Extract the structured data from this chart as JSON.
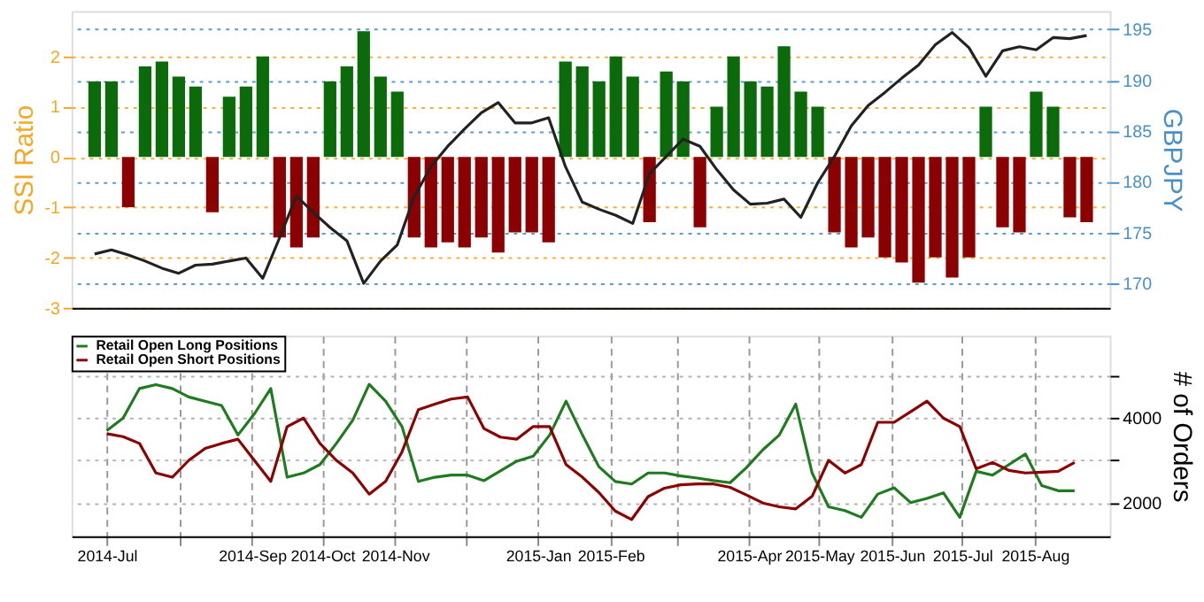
{
  "chart_data": [
    {
      "type": "bar",
      "ylabel": "SSI Ratio",
      "y2label": "GBPJPY",
      "grid": "y",
      "categories": [
        null,
        null,
        null,
        null,
        null,
        null,
        null,
        null,
        null,
        null,
        null,
        null,
        null,
        null,
        null,
        null,
        null,
        null,
        null,
        null,
        null,
        null,
        null,
        null,
        null,
        null,
        null,
        null,
        null,
        null,
        null,
        null,
        null,
        null,
        null,
        null,
        null,
        null,
        null,
        null,
        null,
        null,
        null,
        null,
        null,
        null,
        null,
        null,
        null,
        null,
        null,
        null,
        null,
        null,
        null,
        null,
        null,
        null,
        null,
        null
      ],
      "series": [
        {
          "color": "#0b6b0b",
          "values": [
            1.5,
            1.5,
            null,
            1.8,
            1.9,
            1.6,
            1.4,
            null,
            1.2,
            1.4,
            2.0,
            null,
            null,
            null,
            1.5,
            1.8,
            2.5,
            1.6,
            1.3,
            null,
            null,
            null,
            null,
            null,
            null,
            null,
            null,
            null,
            1.9,
            1.8,
            1.5,
            2.0,
            1.6,
            null,
            1.7,
            1.5,
            null,
            1.0,
            2.0,
            1.5,
            1.4,
            2.2,
            1.3,
            1.0,
            null,
            null,
            null,
            null,
            null,
            null,
            null,
            null,
            null,
            1.0,
            null,
            null,
            1.3,
            1.0,
            null,
            null
          ]
        },
        {
          "color": "#8b0000",
          "values": [
            null,
            null,
            -1.0,
            null,
            null,
            null,
            null,
            -1.1,
            null,
            null,
            null,
            -1.6,
            -1.8,
            -1.6,
            null,
            null,
            null,
            null,
            null,
            -1.6,
            -1.8,
            -1.7,
            -1.8,
            -1.6,
            -1.9,
            -1.5,
            -1.5,
            -1.7,
            null,
            null,
            null,
            null,
            null,
            -1.3,
            null,
            null,
            -1.4,
            null,
            null,
            null,
            null,
            null,
            null,
            null,
            -1.5,
            -1.8,
            -1.6,
            -2.0,
            -2.1,
            -2.5,
            -2.0,
            -2.4,
            -2.0,
            null,
            -1.4,
            -1.5,
            null,
            null,
            -1.2,
            -1.3
          ]
        },
        {
          "type": "line",
          "axis": "y2",
          "color": "#222222",
          "values": [
            172.9,
            173.3,
            172.8,
            172.2,
            171.5,
            171.0,
            171.8,
            171.9,
            172.2,
            172.5,
            170.5,
            174.5,
            178.6,
            177.0,
            175.5,
            174.2,
            170.0,
            172.2,
            173.8,
            178.5,
            181.5,
            183.5,
            185.2,
            186.8,
            187.8,
            185.8,
            185.8,
            186.3,
            181.5,
            178.0,
            177.3,
            176.7,
            175.9,
            180.8,
            182.5,
            184.2,
            183.5,
            181.2,
            179.2,
            177.8,
            177.9,
            178.3,
            176.5,
            179.9,
            182.5,
            185.5,
            187.5,
            188.8,
            190.2,
            191.5,
            193.5,
            194.7,
            193.2,
            190.4,
            192.9,
            193.3,
            193.0,
            194.2,
            194.1,
            194.4
          ]
        }
      ],
      "ylim": [
        -3,
        2.9
      ],
      "yticks": [
        -3,
        -2,
        -1,
        0,
        1,
        2
      ],
      "y2lim": [
        167.6,
        196.8
      ],
      "y2ticks": [
        170,
        175,
        180,
        185,
        190,
        195
      ]
    },
    {
      "type": "line",
      "ylabel": "# of Orders",
      "grid": true,
      "legend": "top left",
      "x": [
        "2014-07-01",
        "2014-07-08",
        "2014-07-15",
        "2014-07-22",
        "2014-07-29",
        "2014-08-05",
        "2014-08-12",
        "2014-08-19",
        "2014-08-26",
        "2014-09-02",
        "2014-09-09",
        "2014-09-16",
        "2014-09-23",
        "2014-09-30",
        "2014-10-07",
        "2014-10-14",
        "2014-10-21",
        "2014-10-28",
        "2014-11-04",
        "2014-11-11",
        "2014-11-18",
        "2014-11-25",
        "2014-12-02",
        "2014-12-09",
        "2014-12-16",
        "2014-12-23",
        "2014-12-30",
        "2015-01-06",
        "2015-01-13",
        "2015-01-20",
        "2015-01-27",
        "2015-02-03",
        "2015-02-10",
        "2015-02-17",
        "2015-02-24",
        "2015-03-03",
        "2015-03-10",
        "2015-03-17",
        "2015-03-24",
        "2015-03-31",
        "2015-04-07",
        "2015-04-14",
        "2015-04-21",
        "2015-04-28",
        "2015-05-05",
        "2015-05-12",
        "2015-05-19",
        "2015-05-26",
        "2015-06-02",
        "2015-06-09",
        "2015-06-16",
        "2015-06-23",
        "2015-06-30",
        "2015-07-07",
        "2015-07-14",
        "2015-07-21",
        "2015-07-28",
        "2015-08-04",
        "2015-08-11",
        "2015-08-18"
      ],
      "series": [
        {
          "name": "Retail Open Long Positions",
          "color": "#1e7b1e",
          "values": [
            3700,
            4000,
            4700,
            4790,
            4700,
            4500,
            4400,
            4300,
            3600,
            4100,
            4700,
            2600,
            2700,
            2900,
            3400,
            3950,
            4800,
            4400,
            3800,
            2500,
            2600,
            2650,
            2650,
            2520,
            2750,
            2980,
            3100,
            3600,
            4400,
            3600,
            2850,
            2500,
            2440,
            2700,
            2700,
            2630,
            2580,
            2520,
            2470,
            2830,
            3250,
            3600,
            4330,
            2700,
            1900,
            1810,
            1650,
            2200,
            2350,
            2000,
            2100,
            2230,
            1650,
            2740,
            2650,
            2900,
            3150,
            2400,
            2280,
            2280
          ]
        },
        {
          "name": "Retail Open Short Positions",
          "color": "#8b0000",
          "values": [
            3630,
            3560,
            3400,
            2700,
            2600,
            3000,
            3280,
            3400,
            3500,
            3000,
            2500,
            3800,
            4000,
            3400,
            3000,
            2700,
            2200,
            2500,
            3200,
            4200,
            4330,
            4450,
            4500,
            3750,
            3550,
            3500,
            3800,
            3800,
            2900,
            2600,
            2240,
            1800,
            1600,
            2140,
            2340,
            2420,
            2440,
            2440,
            2360,
            2180,
            1990,
            1900,
            1850,
            2150,
            3000,
            2700,
            2900,
            3900,
            3900,
            4150,
            4400,
            4000,
            3800,
            2800,
            2950,
            2760,
            2700,
            2720,
            2740,
            2950
          ]
        }
      ],
      "xlim": [
        "2014-06-16",
        "2015-09-02"
      ],
      "xticks": [
        {
          "value": "2014-07-01",
          "label": "2014-Jul"
        },
        {
          "value": "2014-08-01",
          "label": null
        },
        {
          "value": "2014-09-01",
          "label": "2014-Sep"
        },
        {
          "value": "2014-10-01",
          "label": "2014-Oct"
        },
        {
          "value": "2014-11-01",
          "label": "2014-Nov"
        },
        {
          "value": "2014-12-01",
          "label": null
        },
        {
          "value": "2015-01-01",
          "label": "2015-Jan"
        },
        {
          "value": "2015-02-01",
          "label": "2015-Feb"
        },
        {
          "value": "2015-03-01",
          "label": null
        },
        {
          "value": "2015-04-01",
          "label": "2015-Apr"
        },
        {
          "value": "2015-05-01",
          "label": "2015-May"
        },
        {
          "value": "2015-06-01",
          "label": "2015-Jun"
        },
        {
          "value": "2015-07-01",
          "label": "2015-Jul"
        },
        {
          "value": "2015-08-01",
          "label": "2015-Aug"
        }
      ],
      "ylim": [
        1200,
        5950
      ],
      "yticks": [
        2000,
        {
          "value": 3000,
          "label": null
        },
        4000,
        {
          "value": 5000,
          "label": null
        }
      ]
    }
  ]
}
